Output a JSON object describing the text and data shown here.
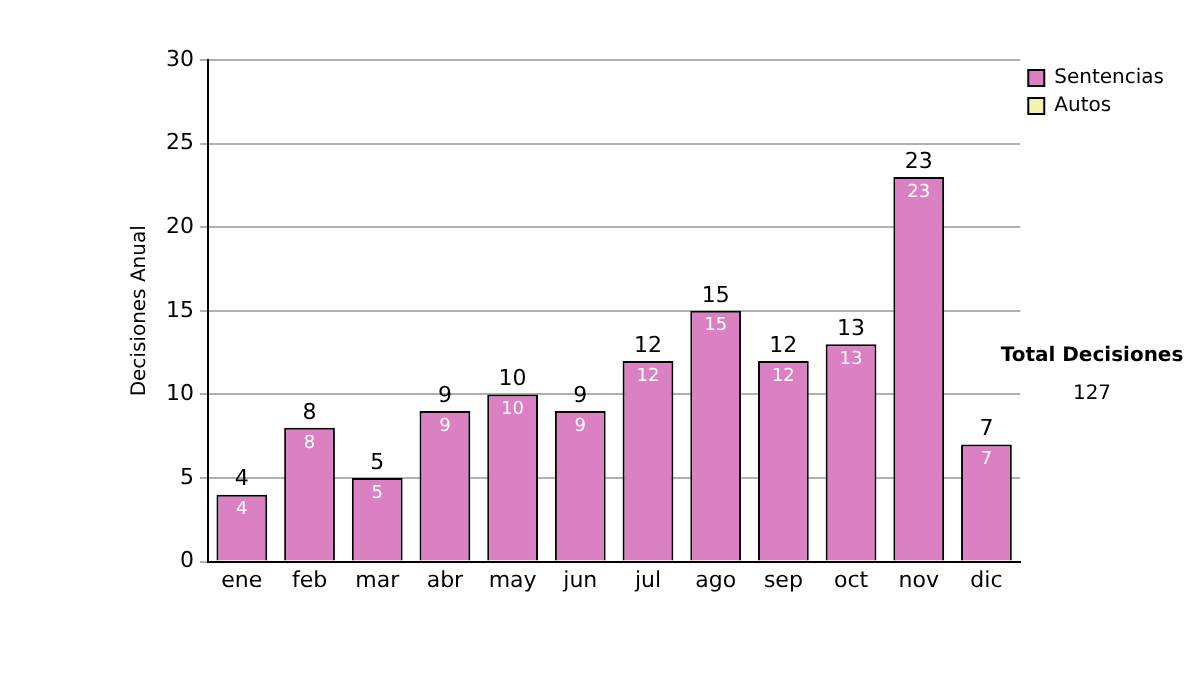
{
  "chart_data": {
    "type": "bar",
    "ylabel": "Decisiones Anual",
    "categories": [
      "ene",
      "feb",
      "mar",
      "abr",
      "may",
      "jun",
      "jul",
      "ago",
      "sep",
      "oct",
      "nov",
      "dic"
    ],
    "series": [
      {
        "name": "Sentencias",
        "color": "#dc80c4",
        "values": [
          4,
          8,
          5,
          9,
          10,
          9,
          12,
          15,
          12,
          13,
          23,
          7
        ],
        "value_labels": [
          "4",
          "8",
          "5",
          "9",
          "10",
          "9",
          "12",
          "15",
          "12",
          "13",
          "23",
          "7"
        ]
      },
      {
        "name": "Autos",
        "color": "#f4f4b0",
        "values": [
          0,
          0,
          0,
          0,
          0,
          0,
          0,
          0,
          0,
          0,
          0,
          0
        ]
      }
    ],
    "stacked": true,
    "ylim": [
      0,
      30
    ],
    "yticks": [
      0,
      5,
      10,
      15,
      20,
      25,
      30
    ],
    "grid": "y",
    "legend": "right",
    "totals": [
      "4",
      "8",
      "5",
      "9",
      "10",
      "9",
      "12",
      "15",
      "12",
      "13",
      "23",
      "7"
    ],
    "annotations": [
      "Total Decisiones",
      "127"
    ]
  }
}
